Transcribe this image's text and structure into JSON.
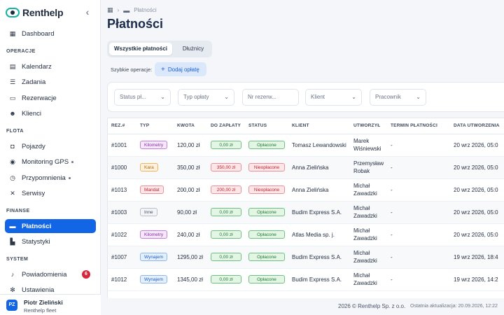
{
  "app": {
    "name": "Renthelp"
  },
  "sidebar": {
    "collapse_icon": "chevron-left-icon",
    "items": [
      {
        "label": "Dashboard",
        "icon": "grid-icon",
        "glyph": "▦"
      }
    ],
    "sections": [
      {
        "title": "OPERACJE",
        "items": [
          {
            "label": "Kalendarz",
            "icon": "calendar-icon",
            "glyph": "▤"
          },
          {
            "label": "Zadania",
            "icon": "checklist-icon",
            "glyph": "☰"
          },
          {
            "label": "Rezerwacje",
            "icon": "book-icon",
            "glyph": "▭"
          },
          {
            "label": "Klienci",
            "icon": "users-icon",
            "glyph": "☻"
          }
        ]
      },
      {
        "title": "FLOTA",
        "items": [
          {
            "label": "Pojazdy",
            "icon": "car-icon",
            "glyph": "◘"
          },
          {
            "label": "Monitoring GPS",
            "icon": "location-icon",
            "glyph": "◉"
          },
          {
            "label": "Przypomnienia",
            "icon": "clock-icon",
            "glyph": "◷"
          },
          {
            "label": "Serwisy",
            "icon": "wrench-icon",
            "glyph": "✕"
          }
        ]
      },
      {
        "title": "FINANSE",
        "items": [
          {
            "label": "Płatności",
            "icon": "card-icon",
            "glyph": "▬"
          },
          {
            "label": "Statystyki",
            "icon": "chart-icon",
            "glyph": "▙"
          }
        ]
      },
      {
        "title": "SYSTEM",
        "items": [
          {
            "label": "Powiadomienia",
            "icon": "bell-icon",
            "glyph": "♪",
            "badge": "6"
          },
          {
            "label": "Ustawienia",
            "icon": "gear-icon",
            "glyph": "✻"
          }
        ]
      }
    ]
  },
  "user": {
    "initials": "PZ",
    "name": "Piotr Zieliński",
    "org": "Renthelp fleet"
  },
  "breadcrumb": {
    "current": "Płatności"
  },
  "page": {
    "title": "Płatności"
  },
  "tabs": {
    "all": "Wszystkie płatności",
    "debtors": "Dłużnicy"
  },
  "quick": {
    "label": "Szybkie operacje:",
    "add": "Dodaj opłatę"
  },
  "filters": {
    "status": "Status pł...",
    "type": "Typ opłaty",
    "reservation": "Nr rezerw...",
    "client": "Klient",
    "employee": "Pracownik"
  },
  "table": {
    "headers": [
      "REZ.#",
      "TYP",
      "KWOTA",
      "DO ZAPŁATY",
      "STATUS",
      "KLIENT",
      "UTWORZYŁ",
      "TERMIN PŁATNOŚCI",
      "DATA UTWORZENIA"
    ],
    "rows": [
      {
        "rez": "#1001",
        "type": "Kilometry",
        "type_kind": "purple",
        "amount": "120,00 zł",
        "due": "0,00 zł",
        "due_kind": "green",
        "status": "Opłacone",
        "status_kind": "green",
        "client": "Tomasz Lewandowski",
        "creator": "Marek Wiśniewski",
        "deadline": "-",
        "created": "20 wrz 2026, 05:0"
      },
      {
        "rez": "#1000",
        "type": "Kara",
        "type_kind": "orange",
        "amount": "350,00 zł",
        "due": "350,00 zł",
        "due_kind": "red",
        "status": "Nieopłacone",
        "status_kind": "red",
        "client": "Anna Zielińska",
        "creator": "Przemysław Robak",
        "deadline": "-",
        "created": "20 wrz 2026, 05:0"
      },
      {
        "rez": "#1013",
        "type": "Mandat",
        "type_kind": "red",
        "amount": "200,00 zł",
        "due": "200,00 zł",
        "due_kind": "red",
        "status": "Nieopłacone",
        "status_kind": "red",
        "client": "Anna Zielińska",
        "creator": "Michał Zawadzki",
        "deadline": "-",
        "created": "20 wrz 2026, 05:0"
      },
      {
        "rez": "#1003",
        "type": "Inne",
        "type_kind": "gray",
        "amount": "90,00 zł",
        "due": "0,00 zł",
        "due_kind": "green",
        "status": "Opłacone",
        "status_kind": "green",
        "client": "Budim Express S.A.",
        "creator": "Michał Zawadzki",
        "deadline": "-",
        "created": "20 wrz 2026, 05:0"
      },
      {
        "rez": "#1022",
        "type": "Kilometry",
        "type_kind": "purple",
        "amount": "240,00 zł",
        "due": "0,00 zł",
        "due_kind": "green",
        "status": "Opłacone",
        "status_kind": "green",
        "client": "Atlas Media sp. j.",
        "creator": "Michał Zawadzki",
        "deadline": "-",
        "created": "20 wrz 2026, 05:0"
      },
      {
        "rez": "#1007",
        "type": "Wynajem",
        "type_kind": "blue",
        "amount": "1295,00 zł",
        "due": "0,00 zł",
        "due_kind": "green",
        "status": "Opłacone",
        "status_kind": "green",
        "client": "Budim Express S.A.",
        "creator": "Michał Zawadzki",
        "deadline": "-",
        "created": "19 wrz 2026, 18:4"
      },
      {
        "rez": "#1012",
        "type": "Wynajem",
        "type_kind": "blue",
        "amount": "1345,00 zł",
        "due": "0,00 zł",
        "due_kind": "green",
        "status": "Opłacone",
        "status_kind": "green",
        "client": "Budim Express S.A.",
        "creator": "Michał Zawadzki",
        "deadline": "-",
        "created": "19 wrz 2026, 14:2"
      }
    ]
  },
  "footer": {
    "copyright": "2026 © Renthelp Sp. z o.o.",
    "updated": "Ostatnia aktualizacja: 20.09.2026, 12:22"
  },
  "colors": {
    "purple": {
      "bg": "#f6e8fb",
      "border": "#c77ddc",
      "text": "#8a2ea6"
    },
    "orange": {
      "bg": "#fdf0dc",
      "border": "#f0b460",
      "text": "#b36b08"
    },
    "red": {
      "bg": "#fde6e8",
      "border": "#ee8f98",
      "text": "#c5202f"
    },
    "gray": {
      "bg": "#f2f4f7",
      "border": "#b9c0cb",
      "text": "#4a5466"
    },
    "blue": {
      "bg": "#e4effd",
      "border": "#8bb7ef",
      "text": "#1d5fc2"
    },
    "green": {
      "bg": "#e3f6e6",
      "border": "#6dc27b",
      "text": "#1f7a2f"
    },
    "accent": "#1266e6"
  }
}
